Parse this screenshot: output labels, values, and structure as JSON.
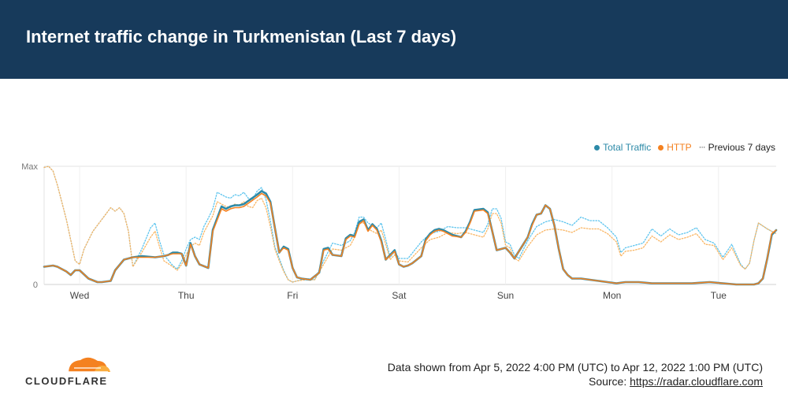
{
  "header": {
    "title": "Internet traffic change in Turkmenistan (Last 7 days)"
  },
  "legend": {
    "total": "Total Traffic",
    "http": "HTTP",
    "previous": "Previous 7 days"
  },
  "colors": {
    "header_bg": "#173a5b",
    "total": "#2c8aa8",
    "http": "#f48120",
    "total_prev": "#5cc4ee",
    "http_prev": "#f9b563",
    "overlap": "#b9a060"
  },
  "footer": {
    "range": "Data shown from Apr 5, 2022 4:00 PM (UTC) to Apr 12, 2022 1:00 PM (UTC)",
    "source_label": "Source: ",
    "source_link": "https://radar.cloudflare.com"
  },
  "logo": {
    "text": "CLOUDFLARE"
  },
  "chart_data": {
    "type": "line",
    "title": "Internet traffic change in Turkmenistan (Last 7 days)",
    "x_unit": "hours since Apr 5, 2022 4:00 PM (UTC)",
    "xlim": [
      0,
      165
    ],
    "ylim": [
      0,
      100
    ],
    "y_tick_labels": [
      {
        "value": 100,
        "label": "Max"
      },
      {
        "value": 0,
        "label": "0"
      }
    ],
    "x_tick_labels": [
      {
        "x": 8,
        "label": "Wed"
      },
      {
        "x": 32,
        "label": "Thu"
      },
      {
        "x": 56,
        "label": "Fri"
      },
      {
        "x": 80,
        "label": "Sat"
      },
      {
        "x": 104,
        "label": "Sun"
      },
      {
        "x": 128,
        "label": "Mon"
      },
      {
        "x": 152,
        "label": "Tue"
      }
    ],
    "grid": true,
    "legend_position": "top-right",
    "series": [
      {
        "name": "Total Traffic",
        "x": [
          0,
          2,
          3,
          5,
          6,
          7,
          8,
          10,
          12,
          13,
          15,
          16,
          18,
          20,
          22,
          25,
          27,
          28,
          29,
          30,
          31,
          32,
          33,
          34,
          35,
          37,
          38,
          40,
          41,
          42,
          43,
          44,
          45,
          48,
          49,
          50,
          51,
          52,
          53,
          54,
          55,
          56,
          57,
          58,
          60,
          62,
          63,
          64,
          65,
          67,
          68,
          69,
          70,
          71,
          72,
          73,
          74,
          75,
          76,
          77,
          79,
          80,
          81,
          82,
          83,
          85,
          86,
          87,
          88,
          89,
          90,
          92,
          94,
          95,
          96,
          97,
          99,
          100,
          101,
          102,
          104,
          105,
          106,
          108,
          109,
          110,
          111,
          112,
          113,
          114,
          115,
          116,
          117,
          118,
          119,
          121,
          123,
          125,
          127,
          129,
          131,
          134,
          137,
          140,
          143,
          146,
          150,
          153,
          156,
          158,
          159,
          160,
          161,
          162,
          163,
          164,
          165
        ],
        "y": [
          15,
          16,
          15,
          11,
          8,
          12,
          12,
          5,
          2,
          2,
          3,
          12,
          21,
          23,
          24,
          23,
          24,
          25,
          27,
          27,
          26,
          16,
          35,
          24,
          17,
          14,
          46,
          66,
          64,
          66,
          67,
          67,
          68,
          76,
          79,
          77,
          70,
          48,
          27,
          32,
          30,
          14,
          6,
          5,
          4,
          10,
          30,
          31,
          25,
          24,
          39,
          42,
          41,
          53,
          55,
          46,
          51,
          47,
          37,
          21,
          29,
          17,
          15,
          16,
          18,
          24,
          38,
          43,
          46,
          47,
          46,
          42,
          40,
          45,
          53,
          63,
          64,
          61,
          45,
          29,
          31,
          27,
          22,
          34,
          40,
          51,
          59,
          60,
          67,
          64,
          50,
          30,
          13,
          8,
          5,
          5,
          4,
          3,
          2,
          1,
          2,
          2,
          1,
          1,
          1,
          1,
          2,
          1,
          0,
          0,
          0,
          0,
          1,
          5,
          22,
          42,
          46
        ]
      },
      {
        "name": "HTTP",
        "x": [
          0,
          2,
          3,
          5,
          6,
          7,
          8,
          10,
          12,
          13,
          15,
          16,
          18,
          20,
          22,
          25,
          27,
          28,
          29,
          30,
          31,
          32,
          33,
          34,
          35,
          37,
          38,
          40,
          41,
          42,
          43,
          44,
          45,
          48,
          49,
          50,
          51,
          52,
          53,
          54,
          55,
          56,
          57,
          58,
          60,
          62,
          63,
          64,
          65,
          67,
          68,
          69,
          70,
          71,
          72,
          73,
          74,
          75,
          76,
          77,
          79,
          80,
          81,
          82,
          83,
          85,
          86,
          87,
          88,
          89,
          90,
          92,
          94,
          95,
          96,
          97,
          99,
          100,
          101,
          102,
          104,
          105,
          106,
          108,
          109,
          110,
          111,
          112,
          113,
          114,
          115,
          116,
          117,
          118,
          119,
          121,
          123,
          125,
          127,
          129,
          131,
          134,
          137,
          140,
          143,
          146,
          150,
          153,
          156,
          158,
          159,
          160,
          161,
          162,
          163,
          164,
          165
        ],
        "y": [
          15,
          16,
          15,
          11,
          8,
          12,
          12,
          5,
          2,
          2,
          3,
          12,
          21,
          23,
          23,
          23,
          24,
          25,
          26,
          26,
          26,
          16,
          34,
          24,
          17,
          14,
          45,
          64,
          62,
          64,
          65,
          65,
          66,
          74,
          77,
          75,
          69,
          48,
          27,
          31,
          29,
          14,
          6,
          5,
          4,
          10,
          29,
          30,
          25,
          24,
          38,
          41,
          40,
          51,
          54,
          45,
          50,
          46,
          36,
          21,
          28,
          17,
          15,
          16,
          18,
          24,
          37,
          42,
          45,
          46,
          45,
          41,
          40,
          44,
          52,
          62,
          63,
          60,
          45,
          29,
          31,
          27,
          22,
          34,
          40,
          50,
          59,
          60,
          67,
          64,
          50,
          30,
          13,
          8,
          5,
          5,
          4,
          3,
          2,
          1,
          2,
          2,
          1,
          1,
          1,
          1,
          2,
          1,
          0,
          0,
          0,
          0,
          1,
          5,
          22,
          43,
          46
        ]
      },
      {
        "name": "Total Traffic (previous 7 days)",
        "x": [
          0,
          1,
          2,
          3,
          5,
          7,
          8,
          9,
          11,
          13,
          15,
          16,
          17,
          18,
          19,
          20,
          22,
          24,
          25,
          26,
          27,
          29,
          30,
          31,
          32,
          33,
          34,
          35,
          36,
          37,
          38,
          39,
          40,
          41,
          42,
          43,
          44,
          45,
          46,
          47,
          48,
          49,
          50,
          51,
          52,
          53,
          54,
          55,
          56,
          57,
          59,
          61,
          63,
          65,
          67,
          69,
          70,
          71,
          72,
          73,
          75,
          76,
          77,
          78,
          79,
          80,
          82,
          85,
          87,
          89,
          91,
          93,
          95,
          97,
          99,
          100,
          101,
          102,
          103,
          104,
          105,
          106,
          107,
          109,
          111,
          113,
          115,
          117,
          119,
          121,
          123,
          125,
          127,
          129,
          130,
          131,
          133,
          135,
          137,
          139,
          141,
          143,
          145,
          147,
          149,
          151,
          153,
          155,
          157,
          158,
          159,
          160,
          161,
          163,
          165
        ],
        "y": [
          99,
          100,
          96,
          84,
          55,
          20,
          17,
          30,
          45,
          55,
          65,
          62,
          65,
          60,
          45,
          15,
          30,
          48,
          52,
          37,
          25,
          16,
          13,
          20,
          30,
          38,
          40,
          38,
          49,
          56,
          64,
          78,
          76,
          74,
          73,
          76,
          75,
          78,
          73,
          72,
          79,
          82,
          72,
          54,
          32,
          22,
          12,
          4,
          2,
          3,
          5,
          4,
          20,
          35,
          33,
          37,
          44,
          57,
          57,
          52,
          48,
          52,
          38,
          23,
          28,
          22,
          22,
          36,
          43,
          45,
          49,
          48,
          48,
          46,
          44,
          51,
          64,
          64,
          56,
          36,
          34,
          25,
          22,
          37,
          49,
          53,
          55,
          53,
          50,
          57,
          54,
          54,
          48,
          40,
          27,
          31,
          33,
          35,
          47,
          41,
          47,
          42,
          44,
          48,
          38,
          35,
          23,
          34,
          17,
          13,
          18,
          37,
          52,
          47,
          43
        ]
      },
      {
        "name": "HTTP (previous 7 days)",
        "x": [
          0,
          1,
          2,
          3,
          5,
          7,
          8,
          9,
          11,
          13,
          15,
          16,
          17,
          18,
          19,
          20,
          22,
          24,
          25,
          26,
          27,
          29,
          30,
          31,
          32,
          33,
          34,
          35,
          36,
          37,
          38,
          39,
          40,
          41,
          42,
          43,
          44,
          45,
          46,
          47,
          48,
          49,
          50,
          51,
          52,
          53,
          54,
          55,
          56,
          57,
          59,
          61,
          63,
          65,
          67,
          69,
          70,
          71,
          72,
          73,
          75,
          76,
          77,
          78,
          79,
          80,
          82,
          85,
          87,
          89,
          91,
          93,
          95,
          97,
          99,
          100,
          101,
          102,
          103,
          104,
          105,
          106,
          107,
          109,
          111,
          113,
          115,
          117,
          119,
          121,
          123,
          125,
          127,
          129,
          130,
          131,
          133,
          135,
          137,
          139,
          141,
          143,
          145,
          147,
          149,
          151,
          153,
          155,
          157,
          158,
          159,
          160,
          161,
          163,
          165
        ],
        "y": [
          99,
          100,
          96,
          84,
          55,
          20,
          17,
          30,
          45,
          55,
          65,
          62,
          65,
          60,
          45,
          15,
          27,
          40,
          45,
          32,
          20,
          15,
          12,
          17,
          25,
          32,
          35,
          33,
          44,
          51,
          58,
          70,
          68,
          66,
          65,
          68,
          67,
          70,
          66,
          65,
          71,
          73,
          65,
          49,
          30,
          20,
          11,
          4,
          2,
          3,
          4,
          4,
          17,
          30,
          29,
          33,
          40,
          52,
          52,
          47,
          43,
          46,
          34,
          21,
          25,
          20,
          19,
          31,
          38,
          40,
          44,
          43,
          44,
          42,
          40,
          47,
          60,
          60,
          52,
          33,
          31,
          22,
          20,
          32,
          42,
          46,
          47,
          46,
          44,
          48,
          47,
          47,
          43,
          36,
          24,
          28,
          29,
          31,
          41,
          36,
          42,
          38,
          40,
          43,
          34,
          33,
          21,
          31,
          16,
          13,
          18,
          37,
          52,
          47,
          43
        ]
      }
    ]
  }
}
